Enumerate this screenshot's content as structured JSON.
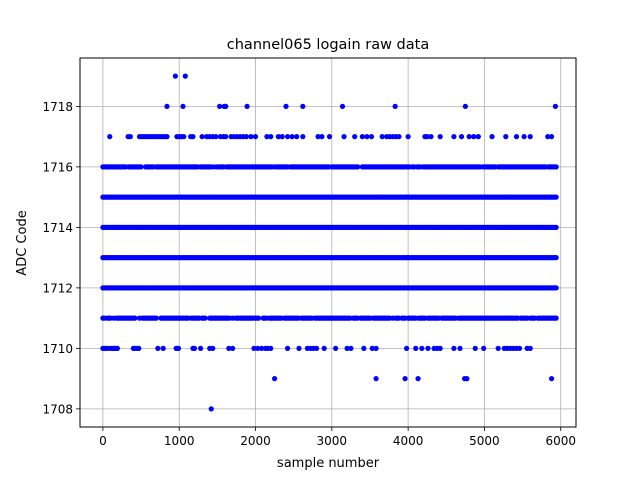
{
  "chart_data": {
    "type": "scatter",
    "title": "channel065 logain raw data",
    "xlabel": "sample number",
    "ylabel": "ADC Code",
    "xlim": [
      -300,
      6200
    ],
    "ylim": [
      1707.4,
      1719.6
    ],
    "xticks": [
      0,
      1000,
      2000,
      3000,
      4000,
      5000,
      6000
    ],
    "xtick_labels": [
      "0",
      "1000",
      "2000",
      "3000",
      "4000",
      "5000",
      "6000"
    ],
    "yticks": [
      1708,
      1710,
      1712,
      1714,
      1716,
      1718
    ],
    "ytick_labels": [
      "1708",
      "1710",
      "1712",
      "1714",
      "1716",
      "1718"
    ],
    "grid": true,
    "legend": "none",
    "marker_color": "#0000ff",
    "sample_range": [
      0,
      5940
    ],
    "dense_levels": [
      1711,
      1712,
      1713,
      1714,
      1715,
      1716
    ],
    "sparse_points": {
      "1710": [
        0,
        30,
        60,
        100,
        130,
        150,
        170,
        190,
        400,
        420,
        440,
        470,
        720,
        790,
        960,
        990,
        1180,
        1200,
        1280,
        1400,
        1440,
        1650,
        1700,
        1980,
        2030,
        2080,
        2130,
        2160,
        2200,
        2420,
        2570,
        2680,
        2720,
        2760,
        2800,
        2900,
        3050,
        3200,
        3250,
        3420,
        3530,
        3580,
        3980,
        4100,
        4180,
        4260,
        4340,
        4380,
        4420,
        4600,
        4680,
        4880,
        4990,
        5180,
        5260,
        5300,
        5340,
        5380,
        5420,
        5460,
        5560,
        5600
      ],
      "1709": [
        2250,
        3580,
        3960,
        4130,
        4740,
        4770,
        5880
      ],
      "1708": [
        1420
      ],
      "1717": [
        90,
        330,
        360,
        480,
        510,
        540,
        570,
        600,
        630,
        660,
        690,
        720,
        750,
        780,
        810,
        840,
        970,
        1000,
        1030,
        1060,
        1150,
        1180,
        1300,
        1360,
        1400,
        1440,
        1480,
        1540,
        1580,
        1610,
        1680,
        1720,
        1760,
        1800,
        1840,
        1880,
        1940,
        2000,
        2150,
        2200,
        2300,
        2350,
        2420,
        2480,
        2540,
        2620,
        2820,
        2870,
        2970,
        3160,
        3300,
        3400,
        3460,
        3520,
        3660,
        3720,
        3760,
        3800,
        3840,
        3880,
        4000,
        4220,
        4250,
        4300,
        4420,
        4600,
        4700,
        4800,
        4860,
        4920,
        5100,
        5280,
        5420,
        5520,
        5600,
        5830,
        5880
      ],
      "1718": [
        840,
        1050,
        1530,
        1590,
        1610,
        1890,
        2400,
        2620,
        3140,
        3830,
        4750,
        5930
      ],
      "1719": [
        950,
        1080
      ]
    }
  }
}
